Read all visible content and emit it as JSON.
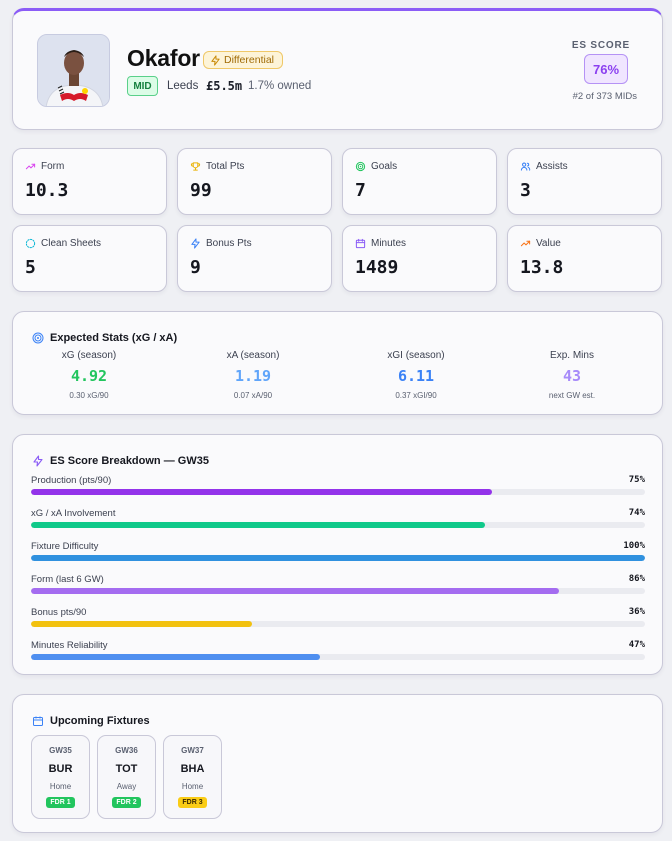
{
  "player": {
    "name": "Okafor",
    "tag": "Differential",
    "position": "MID",
    "team": "Leeds",
    "price": "£5.5m",
    "owned": "1.7% owned",
    "es_label": "ES SCORE",
    "es_score": "76%",
    "es_rank": "#2 of 373 MIDs"
  },
  "stats": [
    {
      "label": "Form",
      "value": "10.3",
      "icon": "trending-up-icon",
      "color": "#d946ef"
    },
    {
      "label": "Total Pts",
      "value": "99",
      "icon": "trophy-icon",
      "color": "#eab308"
    },
    {
      "label": "Goals",
      "value": "7",
      "icon": "target-icon",
      "color": "#22c55e"
    },
    {
      "label": "Assists",
      "value": "3",
      "icon": "users-icon",
      "color": "#3b82f6"
    },
    {
      "label": "Clean Sheets",
      "value": "5",
      "icon": "shield-dashed-icon",
      "color": "#06b6d4"
    },
    {
      "label": "Bonus Pts",
      "value": "9",
      "icon": "zap-icon",
      "color": "#3b82f6"
    },
    {
      "label": "Minutes",
      "value": "1489",
      "icon": "calendar-icon",
      "color": "#8b5cf6"
    },
    {
      "label": "Value",
      "value": "13.8",
      "icon": "trending-up-icon",
      "color": "#f97316"
    }
  ],
  "expected": {
    "title": "Expected Stats (xG / xA)",
    "cols": [
      {
        "label": "xG (season)",
        "value": "4.92",
        "sub": "0.30 xG/90",
        "color": "#22c55e"
      },
      {
        "label": "xA (season)",
        "value": "1.19",
        "sub": "0.07 xA/90",
        "color": "#60a5fa"
      },
      {
        "label": "xGI (season)",
        "value": "6.11",
        "sub": "0.37 xGI/90",
        "color": "#3b82f6"
      },
      {
        "label": "Exp. Mins",
        "value": "43",
        "sub": "next GW est.",
        "color": "#a78bfa"
      }
    ]
  },
  "breakdown": {
    "title": "ES Score Breakdown — GW35",
    "rows": [
      {
        "label": "Production (pts/90)",
        "pct_label": "75%",
        "pct": 75,
        "color": "#9333ea"
      },
      {
        "label": "xG / xA Involvement",
        "pct_label": "74%",
        "pct": 74,
        "color": "#10c98a"
      },
      {
        "label": "Fixture Difficulty",
        "pct_label": "100%",
        "pct": 100,
        "color": "#3091df"
      },
      {
        "label": "Form (last 6 GW)",
        "pct_label": "86%",
        "pct": 86,
        "color": "#a46cf0"
      },
      {
        "label": "Bonus pts/90",
        "pct_label": "36%",
        "pct": 36,
        "color": "#f2c10f"
      },
      {
        "label": "Minutes Reliability",
        "pct_label": "47%",
        "pct": 47,
        "color": "#4f8ff0"
      }
    ]
  },
  "fixtures": {
    "title": "Upcoming Fixtures",
    "items": [
      {
        "gw": "GW35",
        "opponent": "BUR",
        "venue": "Home",
        "fdr": "FDR 1",
        "fdr_bg": "#22c55e",
        "fdr_fg": "#ffffff"
      },
      {
        "gw": "GW36",
        "opponent": "TOT",
        "venue": "Away",
        "fdr": "FDR 2",
        "fdr_bg": "#22c55e",
        "fdr_fg": "#ffffff"
      },
      {
        "gw": "GW37",
        "opponent": "BHA",
        "venue": "Home",
        "fdr": "FDR 3",
        "fdr_bg": "#facc15",
        "fdr_fg": "#3b2a00"
      }
    ]
  }
}
